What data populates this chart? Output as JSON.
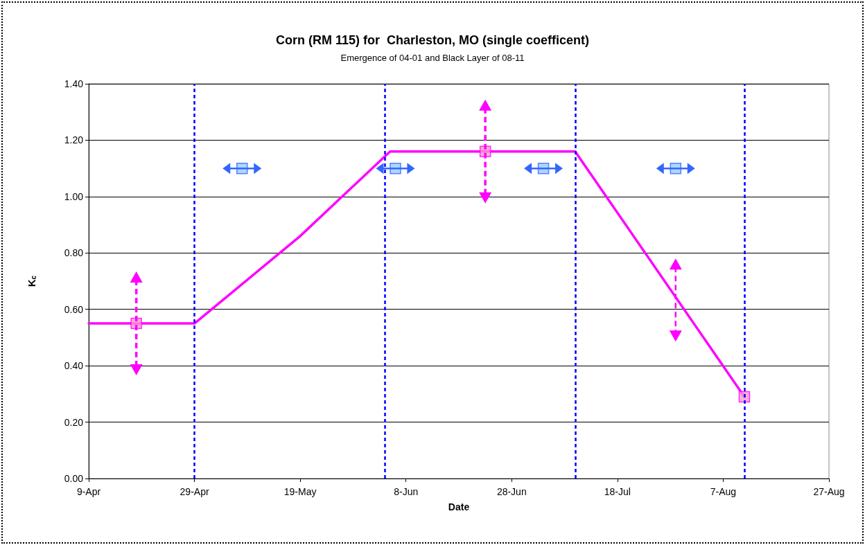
{
  "chart_data": {
    "type": "line",
    "title": "Corn (RM 115) for  Charleston, MO (single coefficent)",
    "subtitle": "Emergence of 04-01 and Black Layer of 08-11",
    "xlabel": "Date",
    "ylabel": "K$_{c}$",
    "xlim": [
      "--04-09",
      "--08-27"
    ],
    "xticks": [
      {
        "value": "--04-09",
        "label": "9-Apr"
      },
      {
        "value": "--04-29",
        "label": "29-Apr"
      },
      {
        "value": "--05-19",
        "label": "19-May"
      },
      {
        "value": "--06-08",
        "label": "8-Jun"
      },
      {
        "value": "--06-28",
        "label": "28-Jun"
      },
      {
        "value": "--07-18",
        "label": "18-Jul"
      },
      {
        "value": "--08-07",
        "label": "7-Aug"
      },
      {
        "value": "--08-27",
        "label": "27-Aug"
      }
    ],
    "ylim": [
      0,
      1.4
    ],
    "yticks": [
      {
        "value": 0,
        "label": "0.00"
      },
      {
        "value": 0.2,
        "label": "0.20"
      },
      {
        "value": 0.4,
        "label": "0.40"
      },
      {
        "value": 0.6,
        "label": "0.60"
      },
      {
        "value": 0.8,
        "label": "0.80"
      },
      {
        "value": 1.0,
        "label": "1.00"
      },
      {
        "value": 1.2,
        "label": "1.20"
      },
      {
        "value": 1.4,
        "label": "1.40"
      }
    ],
    "grid": "y",
    "series": [
      {
        "color": "#ff00ff",
        "marker": "none",
        "line_style": "solid",
        "x": [
          "--04-09",
          "--04-29",
          "--05-19",
          "--06-05",
          "--07-10",
          "--08-11"
        ],
        "values": [
          0.55,
          0.55,
          0.86,
          1.16,
          1.16,
          0.29
        ]
      },
      {
        "type": "scatter",
        "color": "#ff99cc",
        "marker": "square",
        "x": [
          "--04-18",
          "--06-23",
          "--08-11"
        ],
        "values": [
          0.55,
          1.16,
          0.29
        ]
      },
      {
        "type": "scatter",
        "color": "#99ccff",
        "marker": "square",
        "x": [
          "--05-08",
          "--06-06",
          "--07-04",
          "--07-29"
        ],
        "values": [
          1.1,
          1.1,
          1.1,
          1.1
        ]
      }
    ],
    "ref_lines": [
      {
        "axis": "x",
        "value": "--04-29",
        "color": "#0000ff",
        "line_style": "dashed"
      },
      {
        "axis": "x",
        "value": "--06-04",
        "color": "#0000ff",
        "line_style": "dashed"
      },
      {
        "axis": "x",
        "value": "--07-10",
        "color": "#0000ff",
        "line_style": "dashed"
      },
      {
        "axis": "x",
        "value": "--08-11",
        "color": "#0000ff",
        "line_style": "dashed"
      }
    ]
  }
}
